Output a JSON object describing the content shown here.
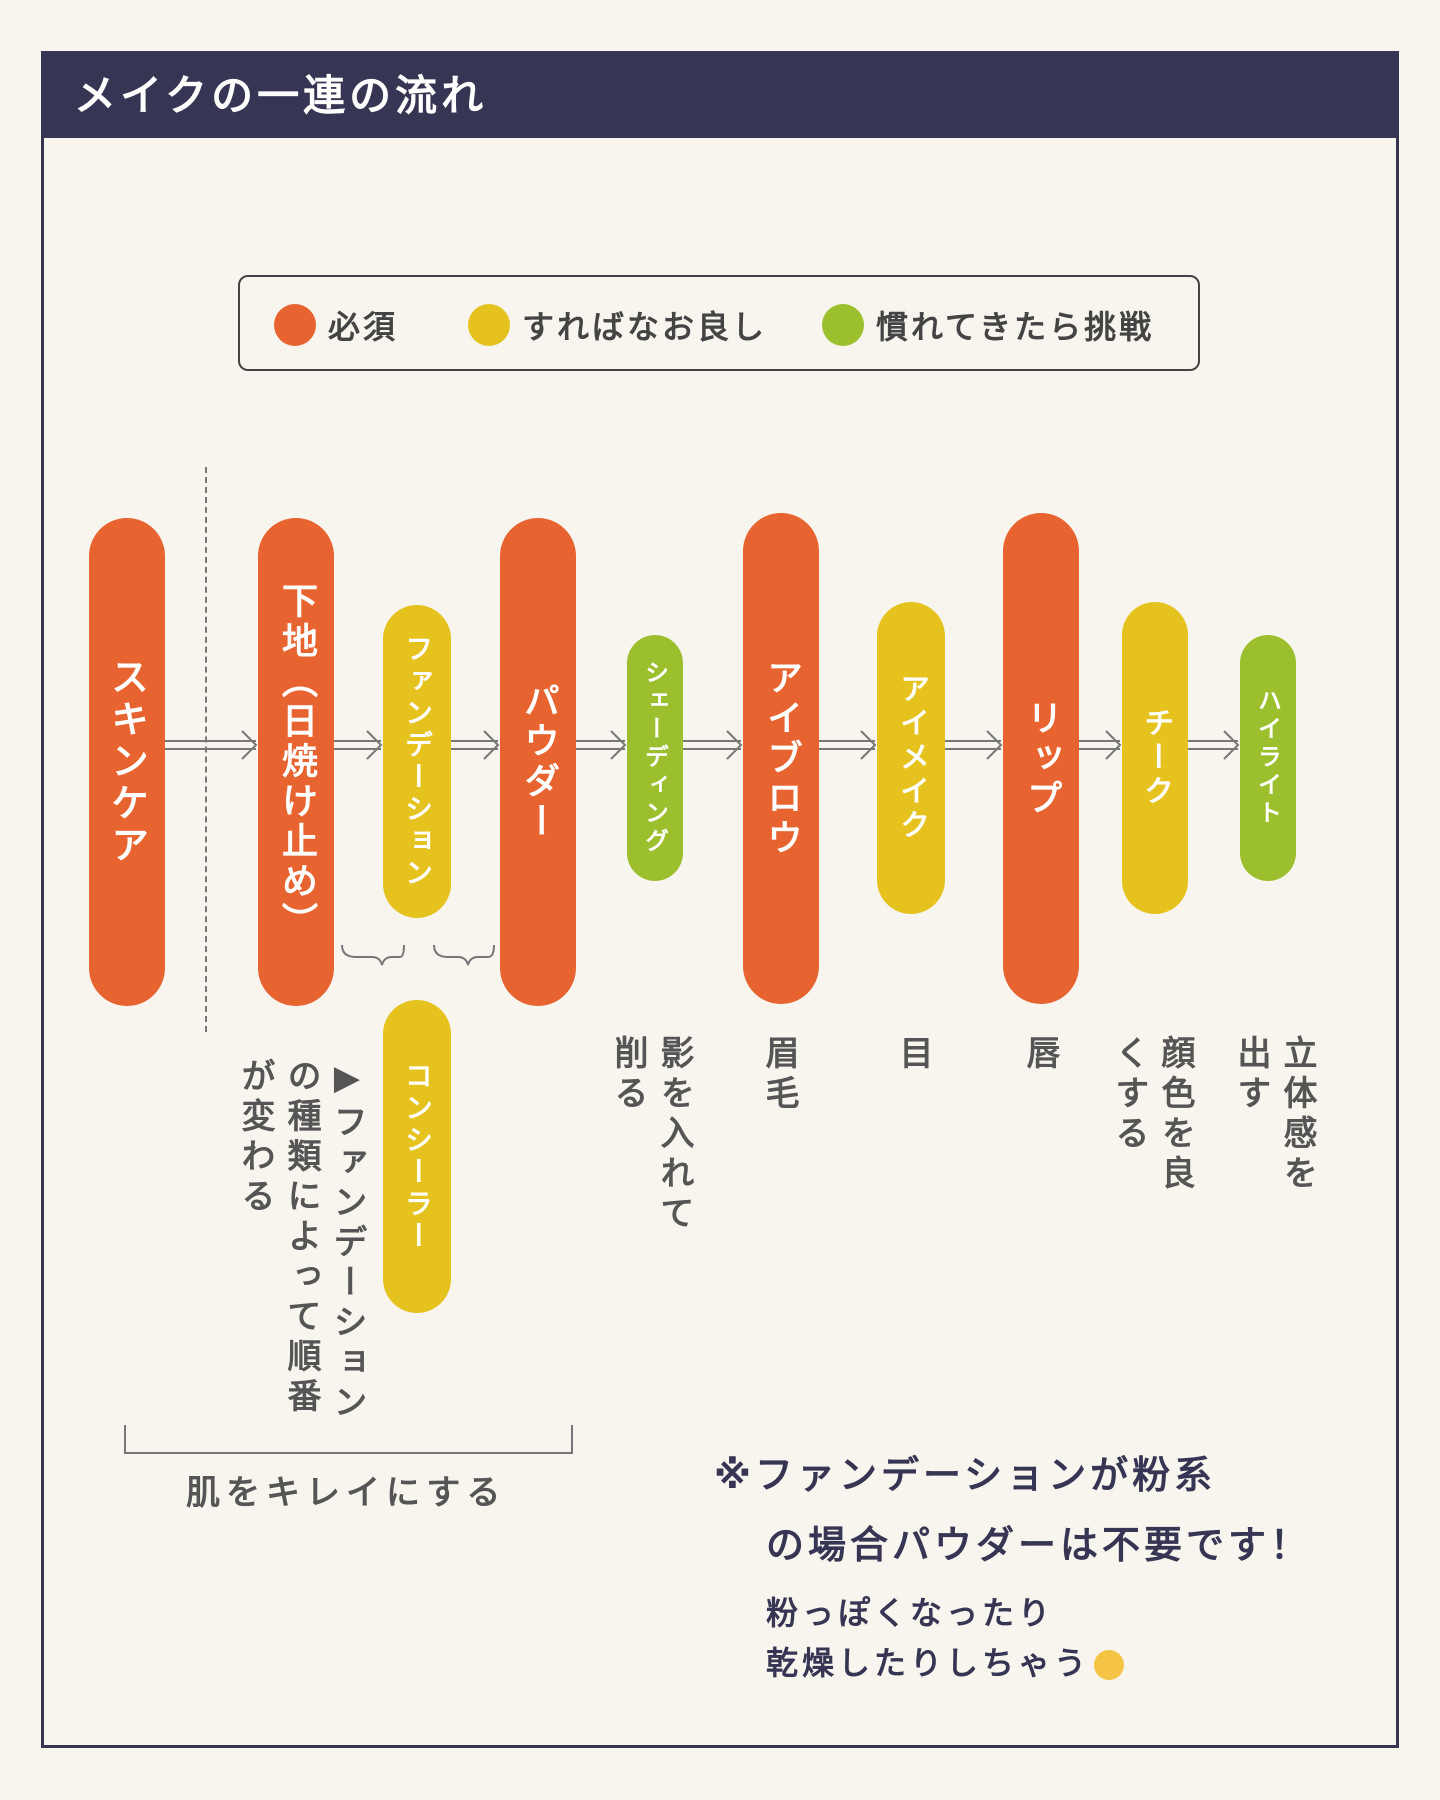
{
  "title": "メイクの一連の流れ",
  "colors": {
    "required": "#e7632f",
    "better": "#e6c21f",
    "advanced": "#9cbf2e",
    "navy": "#363654"
  },
  "legend": [
    {
      "label": "必須",
      "color": "#e7632f"
    },
    {
      "label": "すればなお良し",
      "color": "#e6c21f"
    },
    {
      "label": "慣れてきたら挑戦",
      "color": "#9cbf2e"
    }
  ],
  "steps": [
    {
      "label": "スキンケア",
      "level": "required"
    },
    {
      "label": "下地（日焼け止め）",
      "level": "required"
    },
    {
      "label": "ファンデーション",
      "level": "better"
    },
    {
      "label": "パウダー",
      "level": "required"
    },
    {
      "label": "シェーディング",
      "level": "advanced"
    },
    {
      "label": "アイブロウ",
      "level": "required"
    },
    {
      "label": "アイメイク",
      "level": "better"
    },
    {
      "label": "リップ",
      "level": "required"
    },
    {
      "label": "チーク",
      "level": "better"
    },
    {
      "label": "ハイライト",
      "level": "advanced"
    }
  ],
  "concealer": {
    "label": "コンシーラー",
    "level": "better"
  },
  "order_note": "▶ファンデーションの種類によって順番が変わる",
  "skin_label": "肌をキレイにする",
  "descriptions": {
    "shading": "影を入れて削る",
    "eyebrow": "眉毛",
    "eye": "目",
    "lip": "唇",
    "cheek": "顔色を良くする",
    "highlight": "立体感を出す"
  },
  "note_main": [
    "※ファンデーションが粉系",
    "の場合パウダーは不要です！"
  ],
  "note_sub": [
    "粉っぽくなったり",
    "乾燥したりしちゃう"
  ],
  "note_emoji": "pleading-face-emoji"
}
